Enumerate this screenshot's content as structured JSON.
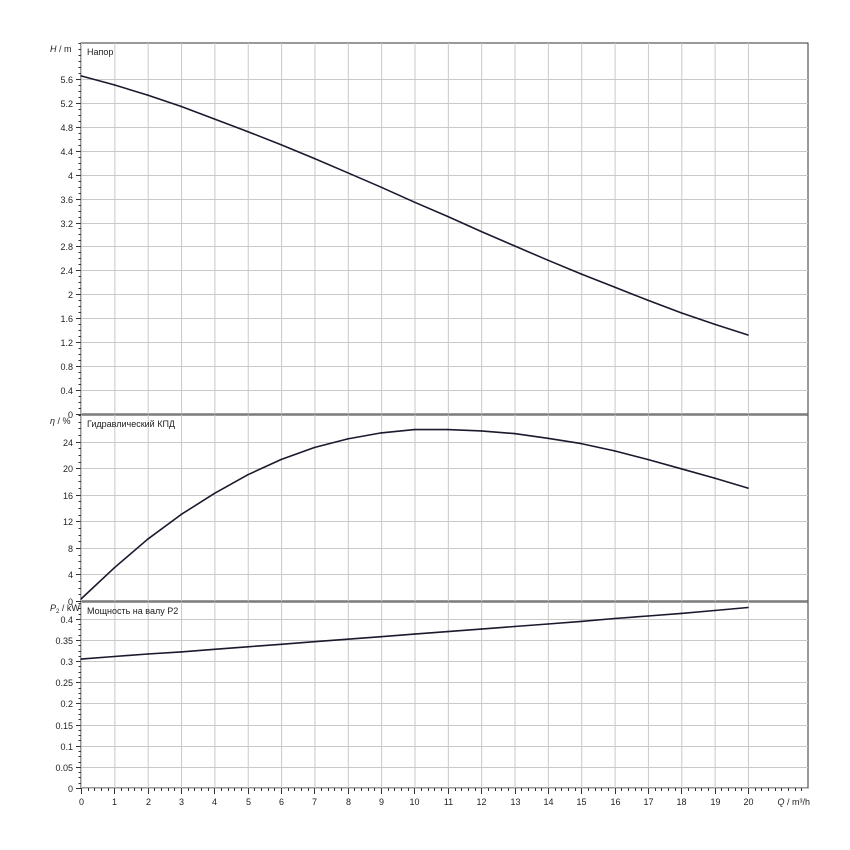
{
  "chart_data": [
    {
      "type": "line",
      "panel": "head",
      "ylabel_symbol": "H",
      "ylabel_unit": "/ m",
      "series_label": "Напор",
      "ylim": [
        0,
        6.2
      ],
      "yticks": [
        0,
        0.4,
        0.8,
        1.2,
        1.6,
        2,
        2.4,
        2.8,
        3.2,
        3.6,
        4,
        4.4,
        4.8,
        5.2,
        5.6
      ],
      "grid": true,
      "line_color": "#1a1a2e",
      "x": [
        0,
        1,
        2,
        3,
        4,
        5,
        6,
        7,
        8,
        9,
        10,
        11,
        12,
        13,
        14,
        15,
        16,
        17,
        18,
        19,
        20
      ],
      "values": [
        5.65,
        5.5,
        5.33,
        5.14,
        4.93,
        4.72,
        4.5,
        4.27,
        4.03,
        3.79,
        3.54,
        3.3,
        3.05,
        2.81,
        2.57,
        2.34,
        2.12,
        1.9,
        1.69,
        1.5,
        1.32
      ]
    },
    {
      "type": "line",
      "panel": "efficiency",
      "ylabel_symbol": "η",
      "ylabel_unit": "/ %",
      "series_label": "Гидравлический КПД",
      "ylim": [
        0,
        28
      ],
      "yticks": [
        0,
        4,
        8,
        12,
        16,
        20,
        24
      ],
      "grid": true,
      "line_color": "#1a1a2e",
      "x": [
        0,
        1,
        2,
        3,
        4,
        5,
        6,
        7,
        8,
        9,
        10,
        11,
        12,
        13,
        14,
        15,
        16,
        17,
        18,
        19,
        20
      ],
      "values": [
        0.3,
        5.0,
        9.3,
        13.0,
        16.2,
        19.0,
        21.3,
        23.1,
        24.4,
        25.3,
        25.8,
        25.8,
        25.6,
        25.2,
        24.5,
        23.7,
        22.6,
        21.3,
        19.9,
        18.5,
        17.0
      ]
    },
    {
      "type": "line",
      "panel": "power",
      "ylabel_symbol": "P",
      "ylabel_sub": "2",
      "ylabel_unit": "/ kW",
      "series_label": "Мощность на валу P2",
      "ylim": [
        0,
        0.44
      ],
      "yticks": [
        0,
        0.05,
        0.1,
        0.15,
        0.2,
        0.25,
        0.3,
        0.35,
        0.4
      ],
      "ytick_labels": [
        "0",
        "0.05",
        "0.1",
        "0.15",
        "0.2",
        "0.25",
        "0.3",
        "0.35",
        "0.4"
      ],
      "grid": true,
      "line_color": "#1a1a2e",
      "x": [
        0,
        1,
        2,
        3,
        4,
        5,
        6,
        7,
        8,
        9,
        10,
        11,
        12,
        13,
        14,
        15,
        16,
        17,
        18,
        19,
        20
      ],
      "values": [
        0.305,
        0.311,
        0.317,
        0.322,
        0.328,
        0.334,
        0.34,
        0.346,
        0.352,
        0.358,
        0.364,
        0.37,
        0.376,
        0.382,
        0.388,
        0.394,
        0.401,
        0.407,
        0.413,
        0.42,
        0.427
      ]
    }
  ],
  "x_axis": {
    "label": "Q / m³/h",
    "xlim": [
      0,
      21.8
    ],
    "ticks": [
      0,
      1,
      2,
      3,
      4,
      5,
      6,
      7,
      8,
      9,
      10,
      11,
      12,
      13,
      14,
      15,
      16,
      17,
      18,
      19,
      20
    ]
  }
}
